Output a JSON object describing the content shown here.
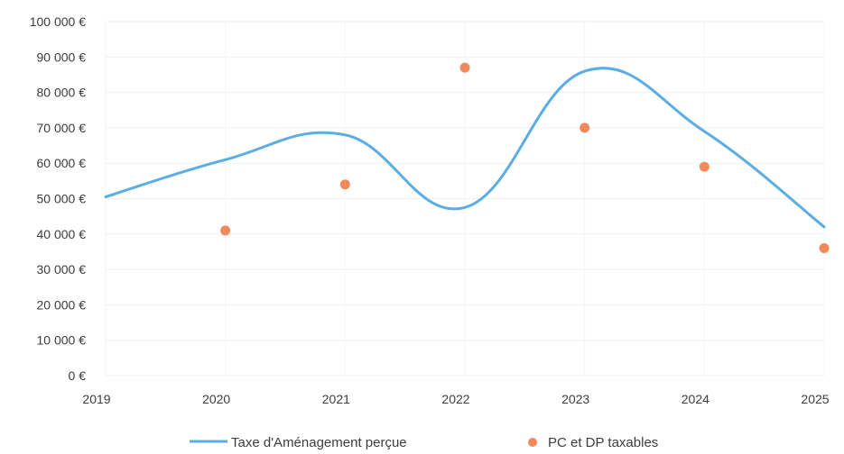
{
  "chart_data": {
    "type": "line",
    "title": "",
    "xlabel": "",
    "ylabel": "",
    "x": [
      "2019",
      "2020",
      "2021",
      "2022",
      "2023",
      "2024",
      "2025"
    ],
    "ylim": [
      0,
      100000
    ],
    "yticks": [
      0,
      10000,
      20000,
      30000,
      40000,
      50000,
      60000,
      70000,
      80000,
      90000,
      100000
    ],
    "ytick_labels": [
      "0 €",
      "10 000 €",
      "20 000 €",
      "30 000 €",
      "40 000 €",
      "50 000 €",
      "60 000 €",
      "70 000 €",
      "80 000 €",
      "90 000 €",
      "100 000 €"
    ],
    "grid": true,
    "legend_position": "bottom",
    "series": [
      {
        "name": "Taxe d'Aménagement perçue",
        "kind": "smooth-line",
        "color": "#5aaee3",
        "values": [
          50500,
          61000,
          68000,
          47500,
          86000,
          69000,
          42000
        ]
      },
      {
        "name": "PC et DP taxables",
        "kind": "scatter",
        "color": "#f08a5a",
        "values": [
          null,
          41000,
          54000,
          87000,
          70000,
          59000,
          36000
        ]
      }
    ]
  }
}
